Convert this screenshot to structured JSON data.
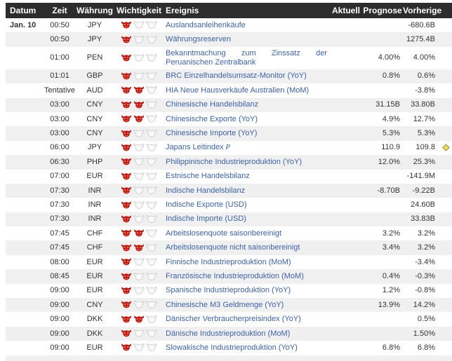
{
  "colors": {
    "header_bg": "#2d2d2d",
    "header_text": "#ffffff",
    "row_alt_bg": "#f0f0f0",
    "text_color": "#333333",
    "link_color": "#3c62aa",
    "bull_red": "#c41b11",
    "bull_empty_fill": "#fafafa",
    "bull_empty_stroke": "#cccccc",
    "diamond_fill": "#ece06a",
    "diamond_stroke": "#9d9026"
  },
  "icons": {
    "importance_filled": "bull-icon",
    "importance_empty": "bull-outline-icon",
    "note": "yellow-diamond-icon"
  },
  "table": {
    "columns": [
      {
        "key": "date",
        "label": "Datum"
      },
      {
        "key": "time",
        "label": "Zeit"
      },
      {
        "key": "currency",
        "label": "Währung"
      },
      {
        "key": "importance",
        "label": "Wichtigkeit"
      },
      {
        "key": "event",
        "label": "Ereignis"
      },
      {
        "key": "actual",
        "label": "Aktuell"
      },
      {
        "key": "forecast",
        "label": "Prognose"
      },
      {
        "key": "previous",
        "label": "Vorherige"
      }
    ],
    "importance_max": 3,
    "rows": [
      {
        "date": "Jan. 10",
        "time": "00:50",
        "currency": "JPY",
        "importance": 1,
        "event": "Auslandsanleihenkäufe",
        "actual": "",
        "forecast": "",
        "previous": "-680.6B"
      },
      {
        "date": "",
        "time": "00:50",
        "currency": "JPY",
        "importance": 1,
        "event": "Währungsreserven",
        "actual": "",
        "forecast": "",
        "previous": "1275.4B"
      },
      {
        "date": "",
        "time": "01:00",
        "currency": "PEN",
        "importance": 1,
        "event": "Bekanntmachung zum Zinssatz der Peruanischen Zentralbank",
        "actual": "",
        "forecast": "4.00%",
        "previous": "4.00%"
      },
      {
        "date": "",
        "time": "01:01",
        "currency": "GBP",
        "importance": 1,
        "event": "BRC Einzelhandelsumsatz-Monitor (YoY)",
        "actual": "",
        "forecast": "0.8%",
        "previous": "0.6%"
      },
      {
        "date": "",
        "time": "Tentative",
        "currency": "AUD",
        "importance": 2,
        "event": "HIA Neue Hausverkäufe Australien (MoM)",
        "actual": "",
        "forecast": "",
        "previous": "-3.8%"
      },
      {
        "date": "",
        "time": "03:00",
        "currency": "CNY",
        "importance": 2,
        "event": "Chinesische Handelsbilanz",
        "actual": "",
        "forecast": "31.15B",
        "previous": "33.80B"
      },
      {
        "date": "",
        "time": "03:00",
        "currency": "CNY",
        "importance": 2,
        "event": "Chinesische Exporte (YoY)",
        "actual": "",
        "forecast": "4.9%",
        "previous": "12.7%"
      },
      {
        "date": "",
        "time": "03:00",
        "currency": "CNY",
        "importance": 1,
        "event": "Chinesische Importe (YoY)",
        "actual": "",
        "forecast": "5.3%",
        "previous": "5.3%"
      },
      {
        "date": "",
        "time": "06:00",
        "currency": "JPY",
        "importance": 1,
        "event": "Japans Leitindex",
        "event_suffix": "P",
        "actual": "",
        "forecast": "110.9",
        "previous": "109.8",
        "note_icon": "yellow-diamond"
      },
      {
        "date": "",
        "time": "06:30",
        "currency": "PHP",
        "importance": 1,
        "event": "Philippinische Industrieproduktion (YoY)",
        "actual": "",
        "forecast": "12.0%",
        "previous": "25.3%"
      },
      {
        "date": "",
        "time": "07:00",
        "currency": "EUR",
        "importance": 1,
        "event": "Estnische Handelsbilanz",
        "actual": "",
        "forecast": "",
        "previous": "-141.9M"
      },
      {
        "date": "",
        "time": "07:30",
        "currency": "INR",
        "importance": 1,
        "event": "Indische Handelsbilanz",
        "actual": "",
        "forecast": "-8.70B",
        "previous": "-9.22B"
      },
      {
        "date": "",
        "time": "07:30",
        "currency": "INR",
        "importance": 1,
        "event": "Indische Exporte (USD)",
        "actual": "",
        "forecast": "",
        "previous": "24.60B"
      },
      {
        "date": "",
        "time": "07:30",
        "currency": "INR",
        "importance": 1,
        "event": "Indische Importe (USD)",
        "actual": "",
        "forecast": "",
        "previous": "33.83B"
      },
      {
        "date": "",
        "time": "07:45",
        "currency": "CHF",
        "importance": 2,
        "event": "Arbeitslosenquote saisonbereinigt",
        "actual": "",
        "forecast": "3.2%",
        "previous": "3.2%"
      },
      {
        "date": "",
        "time": "07:45",
        "currency": "CHF",
        "importance": 2,
        "event": "Arbeitslosenquote nicht saisonbereinigt",
        "actual": "",
        "forecast": "3.4%",
        "previous": "3.2%"
      },
      {
        "date": "",
        "time": "08:00",
        "currency": "EUR",
        "importance": 1,
        "event": "Finnische Industrieproduktion (MoM)",
        "actual": "",
        "forecast": "",
        "previous": "-3.4%"
      },
      {
        "date": "",
        "time": "08:45",
        "currency": "EUR",
        "importance": 1,
        "event": "Französische Industrieproduktion (MoM)",
        "actual": "",
        "forecast": "0.4%",
        "previous": "-0.3%"
      },
      {
        "date": "",
        "time": "09:00",
        "currency": "EUR",
        "importance": 1,
        "event": "Spanische Industrieproduktion (YoY)",
        "actual": "",
        "forecast": "1.2%",
        "previous": "-0.8%"
      },
      {
        "date": "",
        "time": "09:00",
        "currency": "CNY",
        "importance": 1,
        "event": "Chinesische M3 Geldmenge (YoY)",
        "actual": "",
        "forecast": "13.9%",
        "previous": "14.2%"
      },
      {
        "date": "",
        "time": "09:00",
        "currency": "DKK",
        "importance": 2,
        "event": "Dänischer Verbraucherpreisindex (YoY)",
        "actual": "",
        "forecast": "",
        "previous": "0.5%"
      },
      {
        "date": "",
        "time": "09:00",
        "currency": "DKK",
        "importance": 1,
        "event": "Dänische Industrieproduktion (MoM)",
        "actual": "",
        "forecast": "",
        "previous": "1.50%"
      },
      {
        "date": "",
        "time": "09:00",
        "currency": "EUR",
        "importance": 1,
        "event": "Slowakische Industrieproduktion (YoY)",
        "actual": "",
        "forecast": "6.8%",
        "previous": "6.8%"
      }
    ]
  }
}
